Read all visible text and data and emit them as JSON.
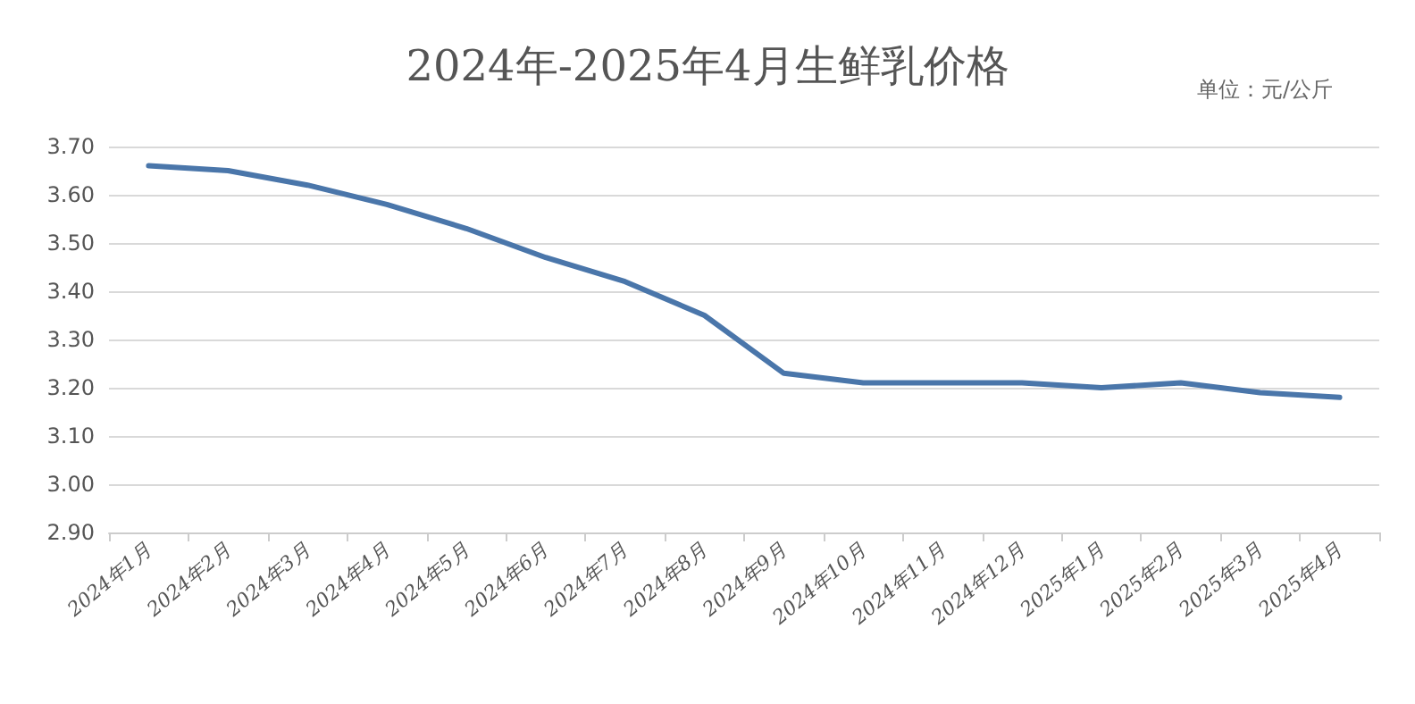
{
  "chart_data": {
    "type": "line",
    "title": "2024年-2025年4月生鲜乳价格",
    "annotations": [
      "单位：元/公斤"
    ],
    "categories": [
      "2024年1月",
      "2024年2月",
      "2024年3月",
      "2024年4月",
      "2024年5月",
      "2024年6月",
      "2024年7月",
      "2024年8月",
      "2024年9月",
      "2024年10月",
      "2024年11月",
      "2024年12月",
      "2025年1月",
      "2025年2月",
      "2025年3月",
      "2025年4月"
    ],
    "series": [
      {
        "color": "#4a76aa",
        "values": [
          3.66,
          3.65,
          3.62,
          3.58,
          3.53,
          3.47,
          3.42,
          3.35,
          3.23,
          3.21,
          3.21,
          3.21,
          3.2,
          3.21,
          3.19,
          3.18
        ]
      }
    ],
    "ylim": [
      2.9,
      3.7
    ],
    "yticks": [
      {
        "value": 2.9,
        "label": "2.90"
      },
      {
        "value": 3.0,
        "label": "3.00"
      },
      {
        "value": 3.1,
        "label": "3.10"
      },
      {
        "value": 3.2,
        "label": "3.20"
      },
      {
        "value": 3.3,
        "label": "3.30"
      },
      {
        "value": 3.4,
        "label": "3.40"
      },
      {
        "value": 3.5,
        "label": "3.50"
      },
      {
        "value": 3.6,
        "label": "3.60"
      },
      {
        "value": 3.7,
        "label": "3.70"
      }
    ],
    "grid": "y",
    "marker": "none",
    "line_style": "solid"
  }
}
